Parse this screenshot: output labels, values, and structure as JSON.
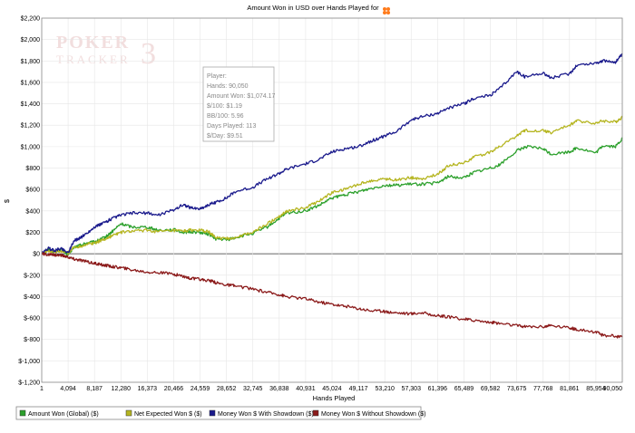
{
  "chart_data": {
    "type": "line",
    "title": "Amount Won in USD over Hands Played for",
    "xlabel": "Hands Played",
    "ylabel": "$",
    "xlim": [
      1,
      90050
    ],
    "ylim": [
      -1200,
      2200
    ],
    "y_ticks": [
      "$2,200",
      "$2,000",
      "$1,800",
      "$1,600",
      "$1,400",
      "$1,200",
      "$1,000",
      "$800",
      "$600",
      "$400",
      "$200",
      "$0",
      "$-200",
      "$-400",
      "$-600",
      "$-800",
      "$-1,000",
      "$-1,200"
    ],
    "x_ticks": [
      "1",
      "4,094",
      "8,187",
      "12,280",
      "16,373",
      "20,466",
      "24,559",
      "28,652",
      "32,745",
      "36,838",
      "40,931",
      "45,024",
      "49,117",
      "53,210",
      "57,303",
      "61,396",
      "65,489",
      "69,582",
      "73,675",
      "77,768",
      "81,861",
      "85,954",
      "90,050"
    ],
    "grid": true,
    "legend_position": "bottom-left",
    "series": [
      {
        "name": "Amount Won (Global) ($)",
        "color": "#2ca02c",
        "x": [
          1,
          1000,
          2000,
          3000,
          4094,
          5000,
          6000,
          7000,
          8187,
          9000,
          10000,
          11000,
          12280,
          14000,
          16373,
          18000,
          20466,
          22000,
          23000,
          24559,
          26000,
          27000,
          28652,
          30000,
          32745,
          35000,
          36838,
          38000,
          40931,
          43000,
          45024,
          47000,
          49117,
          51000,
          53210,
          55000,
          57303,
          59000,
          61396,
          63000,
          65489,
          67000,
          69582,
          71000,
          73675,
          75000,
          77768,
          79000,
          81861,
          83000,
          85954,
          87000,
          89000,
          90050
        ],
        "y": [
          0,
          40,
          20,
          40,
          -10,
          60,
          80,
          100,
          110,
          130,
          160,
          210,
          280,
          250,
          250,
          220,
          225,
          200,
          205,
          200,
          180,
          140,
          130,
          150,
          190,
          250,
          330,
          380,
          400,
          450,
          520,
          550,
          580,
          610,
          640,
          640,
          650,
          650,
          660,
          720,
          710,
          760,
          800,
          830,
          960,
          1000,
          980,
          930,
          950,
          990,
          940,
          1010,
          1000,
          1075
        ]
      },
      {
        "name": "Net Expected Won $ ($)",
        "color": "#b5b520",
        "x": [
          1,
          1000,
          2000,
          3000,
          4094,
          5000,
          6000,
          7000,
          8187,
          9000,
          10000,
          11000,
          12280,
          14000,
          16373,
          18000,
          20466,
          22000,
          23000,
          24559,
          26000,
          27000,
          28652,
          30000,
          32745,
          35000,
          36838,
          38000,
          40931,
          43000,
          45024,
          47000,
          49117,
          51000,
          53210,
          55000,
          57303,
          59000,
          61396,
          63000,
          65489,
          67000,
          69582,
          71000,
          73675,
          75000,
          77768,
          79000,
          81861,
          83000,
          85954,
          87000,
          89000,
          90050
        ],
        "y": [
          0,
          30,
          20,
          20,
          10,
          60,
          70,
          90,
          100,
          120,
          140,
          170,
          200,
          210,
          220,
          205,
          215,
          210,
          220,
          220,
          200,
          150,
          140,
          150,
          200,
          280,
          350,
          400,
          430,
          490,
          570,
          600,
          650,
          680,
          700,
          690,
          710,
          700,
          740,
          820,
          850,
          900,
          950,
          1000,
          1100,
          1150,
          1150,
          1130,
          1200,
          1240,
          1220,
          1240,
          1230,
          1275
        ]
      },
      {
        "name": "Money Won $ With Showdown ($)",
        "color": "#1a1a8c",
        "x": [
          1,
          1000,
          2000,
          3000,
          4094,
          5000,
          6000,
          7000,
          8187,
          9000,
          10000,
          11000,
          12280,
          14000,
          16373,
          18000,
          20466,
          22000,
          23000,
          24559,
          26000,
          27000,
          28652,
          30000,
          32745,
          35000,
          36838,
          38000,
          40931,
          43000,
          45024,
          47000,
          49117,
          51000,
          53210,
          55000,
          57303,
          59000,
          61396,
          63000,
          65489,
          67000,
          69582,
          71000,
          73675,
          75000,
          77768,
          79000,
          81861,
          83000,
          85954,
          87000,
          89000,
          90050
        ],
        "y": [
          0,
          50,
          30,
          50,
          10,
          120,
          150,
          190,
          250,
          270,
          300,
          330,
          360,
          380,
          380,
          360,
          410,
          460,
          430,
          420,
          460,
          480,
          520,
          580,
          620,
          700,
          750,
          790,
          840,
          880,
          950,
          980,
          1000,
          1050,
          1100,
          1140,
          1250,
          1280,
          1310,
          1360,
          1400,
          1450,
          1480,
          1540,
          1700,
          1650,
          1690,
          1640,
          1680,
          1760,
          1780,
          1800,
          1790,
          1860
        ]
      },
      {
        "name": "Money Won $ Without Showdown ($)",
        "color": "#8b1a1a",
        "x": [
          1,
          1000,
          2000,
          3000,
          4094,
          5000,
          6000,
          7000,
          8187,
          9000,
          10000,
          11000,
          12280,
          14000,
          16373,
          18000,
          20466,
          22000,
          23000,
          24559,
          26000,
          27000,
          28652,
          30000,
          32745,
          35000,
          36838,
          38000,
          40931,
          43000,
          45024,
          47000,
          49117,
          51000,
          53210,
          55000,
          57303,
          59000,
          61396,
          63000,
          65489,
          67000,
          69582,
          71000,
          73675,
          75000,
          77768,
          79000,
          81861,
          83000,
          85954,
          87000,
          89000,
          90050
        ],
        "y": [
          0,
          -10,
          -10,
          -15,
          -30,
          -50,
          -60,
          -75,
          -90,
          -100,
          -110,
          -120,
          -130,
          -150,
          -170,
          -175,
          -190,
          -210,
          -230,
          -240,
          -250,
          -270,
          -290,
          -300,
          -330,
          -360,
          -380,
          -400,
          -420,
          -450,
          -470,
          -490,
          -510,
          -530,
          -540,
          -550,
          -560,
          -550,
          -580,
          -590,
          -610,
          -620,
          -640,
          -650,
          -670,
          -680,
          -680,
          -670,
          -690,
          -710,
          -730,
          -760,
          -770,
          -780
        ]
      }
    ]
  },
  "tooltip": {
    "lines": [
      "Player:",
      "Hands: 90,050",
      "Amount Won: $1,074.17",
      "$/100: $1.19",
      "BB/100: 5.96",
      "Days Played: 113",
      "$/Day: $9.51"
    ]
  },
  "watermark": {
    "word1": "POKER",
    "word2": "TRACKER",
    "number": "3"
  },
  "legend": {
    "items": [
      {
        "label": "Amount Won (Global) ($)",
        "color": "#2ca02c"
      },
      {
        "label": "Net Expected Won $ ($)",
        "color": "#b5b520"
      },
      {
        "label": "Money Won $ With Showdown ($)",
        "color": "#1a1a8c"
      },
      {
        "label": "Money Won $ Without Showdown ($)",
        "color": "#8b1a1a"
      }
    ]
  },
  "colors": {
    "title_icon": "#ff7a1a"
  }
}
